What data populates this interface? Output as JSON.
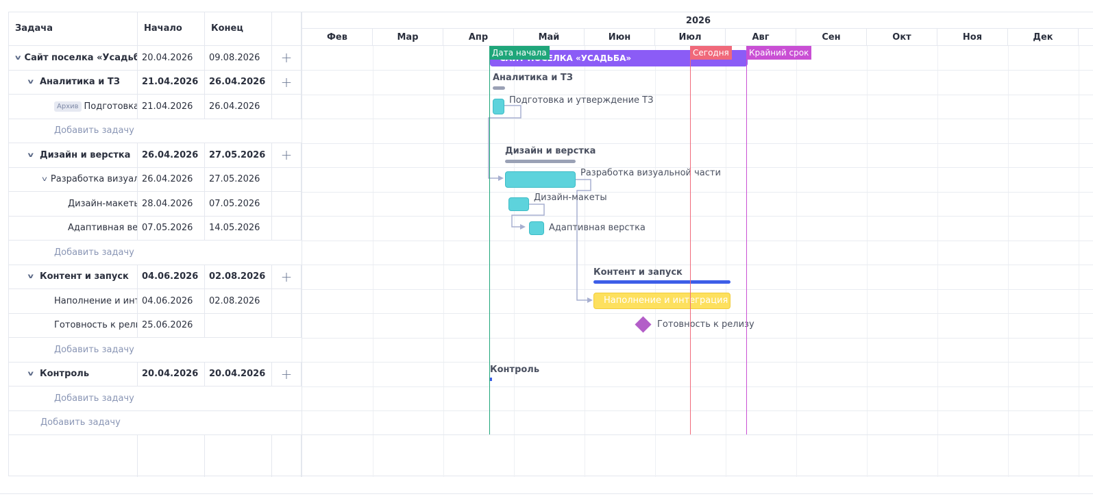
{
  "table": {
    "headers": {
      "task": "Задача",
      "start": "Начало",
      "end": "Конец"
    },
    "rows": [
      {
        "task": "Сайт поселка «Усадьба»",
        "start": "20.04.2026",
        "end": "09.08.2026"
      },
      {
        "task": "Аналитика и ТЗ",
        "start": "21.04.2026",
        "end": "26.04.2026"
      },
      {
        "badge": "Архив",
        "task": "Подготовка и утверждение ТЗ",
        "start": "21.04.2026",
        "end": "26.04.2026"
      },
      {
        "add": "Добавить задачу"
      },
      {
        "task": "Дизайн и верстка",
        "start": "26.04.2026",
        "end": "27.05.2026"
      },
      {
        "task": "Разработка визуальной части",
        "start": "26.04.2026",
        "end": "27.05.2026"
      },
      {
        "task": "Дизайн-макеты",
        "start": "28.04.2026",
        "end": "07.05.2026"
      },
      {
        "task": "Адаптивная верстка",
        "start": "07.05.2026",
        "end": "14.05.2026"
      },
      {
        "add": "Добавить задачу"
      },
      {
        "task": "Контент и запуск",
        "start": "04.06.2026",
        "end": "02.08.2026"
      },
      {
        "task": "Наполнение и интеграция",
        "start": "04.06.2026",
        "end": "02.08.2026"
      },
      {
        "task": "Готовность к релизу",
        "start": "25.06.2026",
        "end": ""
      },
      {
        "add": "Добавить задачу"
      },
      {
        "task": "Контроль",
        "start": "20.04.2026",
        "end": "20.04.2026"
      },
      {
        "add": "Добавить задачу"
      },
      {
        "add": "Добавить задачу"
      }
    ]
  },
  "timeline": {
    "year": "2026",
    "months": [
      "Фев",
      "Мар",
      "Апр",
      "Май",
      "Июн",
      "Июл",
      "Авг",
      "Сен",
      "Окт",
      "Ноя",
      "Дек"
    ],
    "markers": {
      "start": {
        "label": "Дата начала",
        "color": "#1fa67a",
        "date": "20.04.2026"
      },
      "today": {
        "label": "Сегодня",
        "color": "#f0697a",
        "date": "19.07.2026"
      },
      "deadline": {
        "label": "Крайний срок",
        "color": "#c94fd4",
        "date": "12.08.2026"
      }
    },
    "bars": {
      "project": "САЙТ ПОСЕЛКА «УСАДЬБА»",
      "analytics": "Аналитика и ТЗ",
      "tz": "Подготовка и утверждение ТЗ",
      "design": "Дизайн и верстка",
      "visual": "Разработка визуальной части",
      "mockups": "Дизайн-макеты",
      "adaptive": "Адаптивная верстка",
      "content": "Контент и запуск",
      "filling": "Наполнение и интеграция",
      "release": "Готовность к релизу",
      "control": "Контроль"
    },
    "colors": {
      "project": "#8b5cf6",
      "summary": "#9aa1b5",
      "task": "#5dd3dc",
      "content": "#3d5ee8",
      "filling": "#fde05e",
      "milestone": "#b35ec8",
      "link": "#a7afd0"
    }
  },
  "icons": {
    "expand": "chevron-down-icon",
    "add": "plus-icon",
    "milestone": "diamond-icon"
  }
}
